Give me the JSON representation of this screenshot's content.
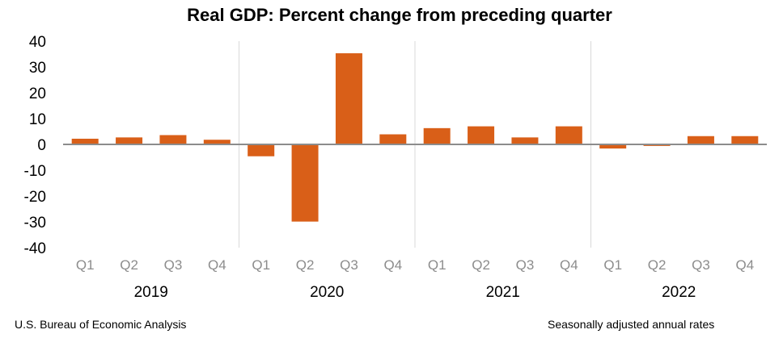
{
  "chart_data": {
    "type": "bar",
    "title": "Real GDP:  Percent change from preceding quarter",
    "categories": [
      "Q1",
      "Q2",
      "Q3",
      "Q4",
      "Q1",
      "Q2",
      "Q3",
      "Q4",
      "Q1",
      "Q2",
      "Q3",
      "Q4",
      "Q1",
      "Q2",
      "Q3",
      "Q4"
    ],
    "groups": [
      "2019",
      "2020",
      "2021",
      "2022"
    ],
    "values": [
      2.2,
      2.7,
      3.6,
      1.8,
      -4.6,
      -29.9,
      35.3,
      3.9,
      6.3,
      7.0,
      2.7,
      7.0,
      -1.6,
      -0.6,
      3.2,
      3.2
    ],
    "yticks": [
      "40",
      "30",
      "20",
      "10",
      "0",
      "-10",
      "-20",
      "-30",
      "-40"
    ],
    "ylim": [
      -40,
      40
    ],
    "xlabel": "",
    "ylabel": "",
    "bar_color": "#d95f18",
    "grid": false
  },
  "footer": {
    "source": "U.S. Bureau of Economic Analysis",
    "note": "Seasonally adjusted annual rates"
  }
}
